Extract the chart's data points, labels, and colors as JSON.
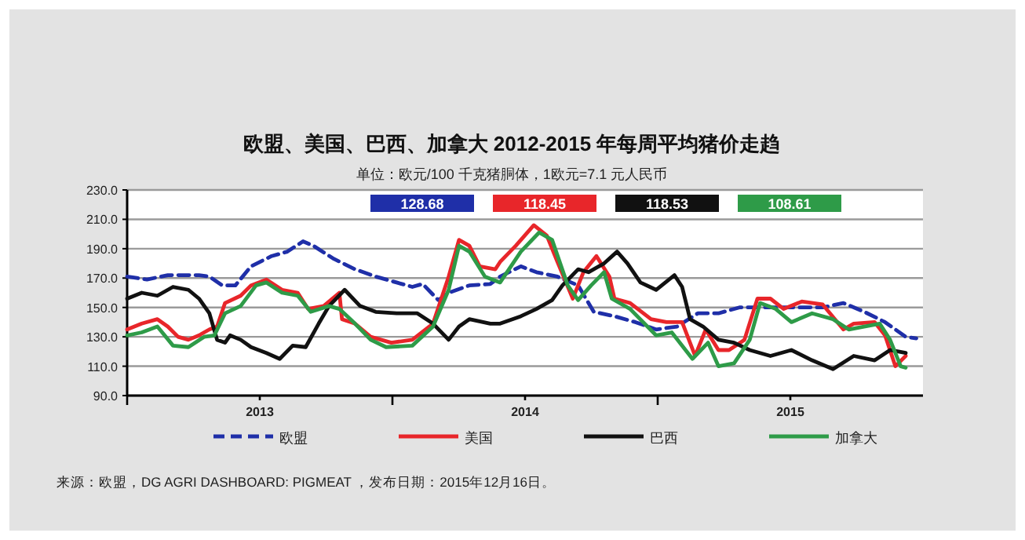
{
  "chart_data": {
    "type": "line",
    "title": "欧盟、美国、巴西、加拿大 2012-2015 年每周平均猪价走趋",
    "subtitle": "单位：欧元/100 千克猪胴体，1欧元=7.1 元人民币",
    "xlim": [
      2012.5,
      2015.5
    ],
    "xticks": [
      {
        "value": 2012.5,
        "label": null
      },
      2013,
      {
        "value": 2013.5,
        "label": null
      },
      2014,
      {
        "value": 2014.5,
        "label": null
      },
      2015
    ],
    "ylim": [
      90,
      230
    ],
    "yticks": [
      {
        "value": 90,
        "label": "90.0"
      },
      {
        "value": 110,
        "label": "110.0"
      },
      {
        "value": 130,
        "label": "130.0"
      },
      {
        "value": 150,
        "label": "150.0"
      },
      {
        "value": 170,
        "label": "170.0"
      },
      {
        "value": 190,
        "label": "190.0"
      },
      {
        "value": 210,
        "label": "210.0"
      },
      {
        "value": 230,
        "label": "230.0"
      }
    ],
    "grid": "y",
    "legend": "bottom",
    "series": [
      {
        "name": "欧盟",
        "color": "#1f2fa8",
        "line_style": "dashed",
        "x": [
          2012.5,
          2012.575,
          2012.653,
          2012.771,
          2012.81,
          2012.859,
          2012.908,
          2012.967,
          2013.045,
          2013.104,
          2013.163,
          2013.202,
          2013.28,
          2013.359,
          2013.437,
          2013.516,
          2013.575,
          2013.614,
          2013.673,
          2013.712,
          2013.79,
          2013.869,
          2013.906,
          2013.984,
          2014.043,
          2014.122,
          2014.2,
          2014.259,
          2014.337,
          2014.416,
          2014.494,
          2014.573,
          2014.651,
          2014.729,
          2014.808,
          2014.886,
          2014.965,
          2015.043,
          2015.122,
          2015.2,
          2015.279,
          2015.357,
          2015.435,
          2015.475
        ],
        "values": [
          171,
          169,
          172,
          172,
          171,
          165,
          165,
          178,
          185,
          188,
          195,
          192,
          183,
          176,
          171,
          167,
          164,
          166,
          155,
          160,
          165,
          166,
          171,
          178,
          174,
          171,
          165,
          147,
          144,
          140,
          135,
          137,
          146,
          146,
          150,
          150,
          150,
          150,
          150,
          153,
          147,
          140,
          130,
          129
        ]
      },
      {
        "name": "美国",
        "color": "#e8262a",
        "line_style": "solid",
        "x": [
          2012.5,
          2012.555,
          2012.614,
          2012.653,
          2012.692,
          2012.731,
          2012.771,
          2012.81,
          2012.839,
          2012.869,
          2012.928,
          2012.967,
          2013.025,
          2013.084,
          2013.143,
          2013.182,
          2013.241,
          2013.3,
          2013.31,
          2013.359,
          2013.418,
          2013.496,
          2013.575,
          2013.653,
          2013.712,
          2013.751,
          2013.79,
          2013.829,
          2013.888,
          2013.906,
          2013.965,
          2014.033,
          2014.082,
          2014.122,
          2014.18,
          2014.22,
          2014.269,
          2014.318,
          2014.337,
          2014.396,
          2014.475,
          2014.533,
          2014.592,
          2014.641,
          2014.681,
          2014.729,
          2014.769,
          2014.827,
          2014.876,
          2014.925,
          2014.975,
          2015.043,
          2015.122,
          2015.2,
          2015.239,
          2015.318,
          2015.357,
          2015.396,
          2015.435
        ],
        "values": [
          135,
          139,
          142,
          137,
          130,
          128,
          131,
          135,
          137,
          153,
          158,
          165,
          169,
          162,
          160,
          149,
          151,
          160,
          142,
          139,
          130,
          126,
          128,
          139,
          171,
          196,
          192,
          178,
          176,
          181,
          192,
          206,
          199,
          181,
          156,
          174,
          185,
          171,
          156,
          153,
          142,
          140,
          140,
          117,
          135,
          121,
          121,
          128,
          156,
          156,
          149,
          154,
          152,
          135,
          139,
          140,
          131,
          110,
          117
        ]
      },
      {
        "name": "巴西",
        "color": "#111111",
        "line_style": "solid",
        "x": [
          2012.5,
          2012.555,
          2012.614,
          2012.673,
          2012.731,
          2012.771,
          2012.81,
          2012.839,
          2012.869,
          2012.888,
          2012.928,
          2012.967,
          2013.025,
          2013.075,
          2013.124,
          2013.173,
          2013.222,
          2013.261,
          2013.32,
          2013.378,
          2013.437,
          2013.516,
          2013.594,
          2013.653,
          2013.712,
          2013.751,
          2013.79,
          2013.869,
          2013.906,
          2013.984,
          2014.043,
          2014.102,
          2014.141,
          2014.2,
          2014.239,
          2014.298,
          2014.347,
          2014.386,
          2014.435,
          2014.494,
          2014.563,
          2014.592,
          2014.622,
          2014.671,
          2014.729,
          2014.788,
          2014.847,
          2014.925,
          2015.004,
          2015.082,
          2015.161,
          2015.239,
          2015.318,
          2015.376,
          2015.435
        ],
        "values": [
          156,
          160,
          158,
          164,
          162,
          156,
          146,
          128,
          126,
          131,
          128,
          123,
          119,
          115,
          124,
          123,
          139,
          151,
          162,
          151,
          147,
          146,
          146,
          139,
          128,
          137,
          142,
          139,
          139,
          144,
          149,
          155,
          165,
          176,
          174,
          180,
          188,
          180,
          167,
          162,
          172,
          164,
          142,
          137,
          128,
          126,
          121,
          117,
          121,
          114,
          108,
          117,
          114,
          121,
          119
        ]
      },
      {
        "name": "加拿大",
        "color": "#2e9b48",
        "line_style": "solid",
        "x": [
          2012.5,
          2012.555,
          2012.614,
          2012.673,
          2012.731,
          2012.79,
          2012.829,
          2012.869,
          2012.928,
          2012.986,
          2013.025,
          2013.084,
          2013.143,
          2013.192,
          2013.261,
          2013.3,
          2013.359,
          2013.418,
          2013.476,
          2013.575,
          2013.653,
          2013.712,
          2013.751,
          2013.79,
          2013.849,
          2013.906,
          2013.984,
          2014.053,
          2014.102,
          2014.161,
          2014.2,
          2014.249,
          2014.298,
          2014.327,
          2014.396,
          2014.494,
          2014.553,
          2014.631,
          2014.69,
          2014.729,
          2014.788,
          2014.847,
          2014.886,
          2014.945,
          2015.004,
          2015.082,
          2015.161,
          2015.22,
          2015.278,
          2015.337,
          2015.376,
          2015.416,
          2015.435
        ],
        "values": [
          131,
          133,
          137,
          124,
          123,
          130,
          131,
          146,
          151,
          165,
          167,
          160,
          158,
          147,
          151,
          149,
          139,
          128,
          123,
          124,
          137,
          162,
          192,
          188,
          171,
          167,
          188,
          201,
          196,
          165,
          155,
          165,
          174,
          156,
          149,
          131,
          133,
          115,
          126,
          110,
          112,
          128,
          153,
          149,
          140,
          146,
          142,
          135,
          137,
          139,
          128,
          110,
          109
        ]
      }
    ],
    "annotations": [
      "128.68",
      "118.45",
      "118.53",
      "108.61",
      "来源：欧盟，DG AGRI DASHBOARD: PIGMEAT ，发布日期：2015年12月16日。"
    ]
  }
}
